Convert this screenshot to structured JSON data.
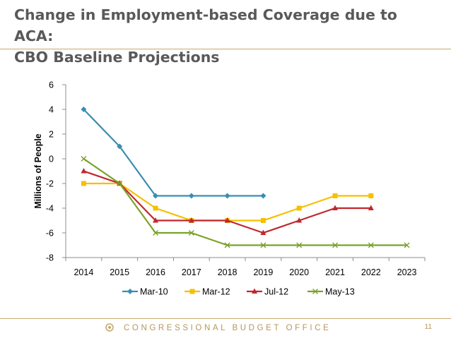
{
  "slide": {
    "title_line1": "Change in Employment-based Coverage due to ACA:",
    "title_line2": "CBO Baseline Projections",
    "footer": "CONGRESSIONAL BUDGET OFFICE",
    "page_number": "11",
    "accent_color": "#c8a870"
  },
  "chart_data": {
    "type": "line",
    "title": "",
    "xlabel": "",
    "ylabel": "Millions of People",
    "x": [
      "2014",
      "2015",
      "2016",
      "2017",
      "2018",
      "2019",
      "2020",
      "2021",
      "2022",
      "2023"
    ],
    "ylim": [
      -8,
      6
    ],
    "yticks": [
      6,
      4,
      2,
      0,
      -2,
      -4,
      -6,
      -8
    ],
    "grid": false,
    "legend_position": "bottom",
    "series": [
      {
        "name": "Mar-10",
        "color": "#3a8eb0",
        "marker": "diamond",
        "values": [
          4,
          1,
          -3,
          -3,
          -3,
          -3,
          null,
          null,
          null,
          null
        ]
      },
      {
        "name": "Mar-12",
        "color": "#f5c000",
        "marker": "square",
        "values": [
          -2,
          -2,
          -4,
          -5,
          -5,
          -5,
          -4,
          -3,
          -3,
          null
        ]
      },
      {
        "name": "Jul-12",
        "color": "#c0272d",
        "marker": "triangle",
        "values": [
          -1,
          -2,
          -5,
          -5,
          -5,
          -6,
          -5,
          -4,
          -4,
          null
        ]
      },
      {
        "name": "May-13",
        "color": "#7aa22a",
        "marker": "x",
        "values": [
          0,
          -2,
          -6,
          -6,
          -7,
          -7,
          -7,
          -7,
          -7,
          -7
        ]
      }
    ]
  }
}
